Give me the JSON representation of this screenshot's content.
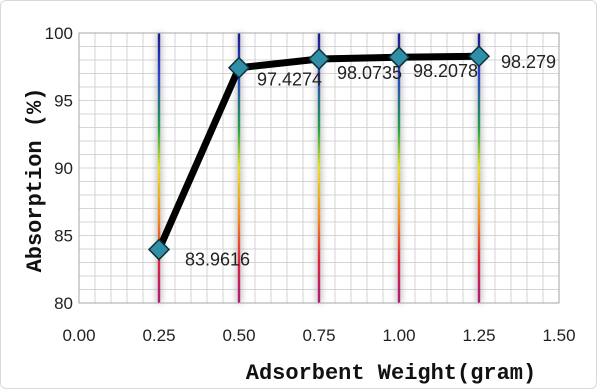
{
  "chart_data": {
    "type": "line",
    "title": "",
    "xlabel": "Adsorbent Weight(gram)",
    "ylabel": "Absorption (%)",
    "xlim": [
      0,
      1.5
    ],
    "ylim": [
      80,
      100
    ],
    "x_ticks": [
      "0.00",
      "0.25",
      "0.50",
      "0.75",
      "1.00",
      "1.25",
      "1.50"
    ],
    "y_ticks": [
      "80",
      "85",
      "90",
      "95",
      "100"
    ],
    "grid": true,
    "series": [
      {
        "x": [
          0.25,
          0.5,
          0.75,
          1.0,
          1.25
        ],
        "y": [
          83.9616,
          97.4274,
          98.0735,
          98.2078,
          98.279
        ],
        "labels": [
          "83.9616",
          "97.4274",
          "98.0735",
          "98.2078",
          "98.279"
        ]
      }
    ],
    "colors": {
      "line": "#000000",
      "marker_fill": "#2e8fa6",
      "marker_stroke": "#0e2f3a",
      "grid": "#c8c8c8"
    }
  }
}
